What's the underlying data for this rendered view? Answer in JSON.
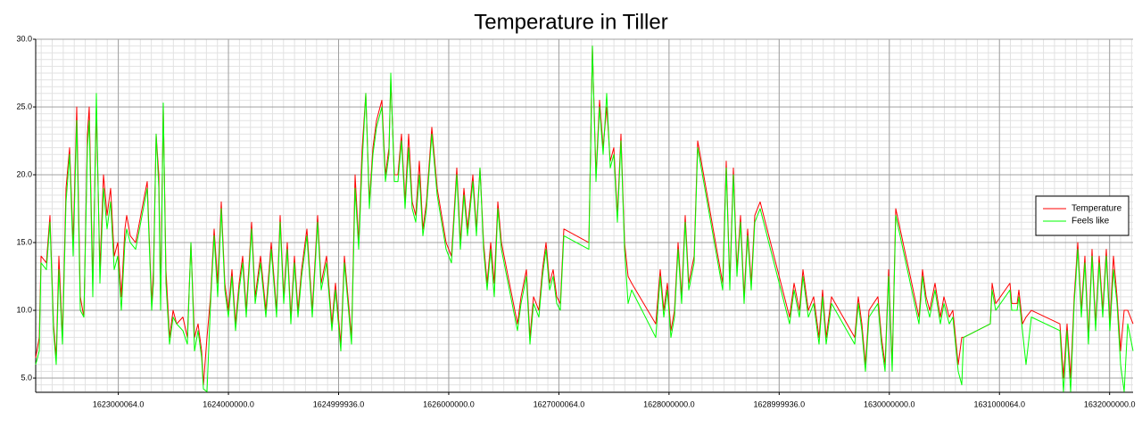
{
  "chart_data": {
    "type": "line",
    "title": "Temperature in Tiller",
    "x": [
      1622250000,
      1622282400,
      1622298600,
      1622347200,
      1622379600,
      1622412000,
      1622436300,
      1622460600,
      1622493000,
      1622525400,
      1622557800,
      1622590200,
      1622622600,
      1622655000,
      1622687400,
      1622719800,
      1622736000,
      1622768400,
      1622800800,
      1622833200,
      1622865600,
      1622898000,
      1622930400,
      1622962800,
      1622995200,
      1623027600,
      1623060000,
      1623076200,
      1623108600,
      1623157200,
      1623262500,
      1623303000,
      1623319200,
      1623343500,
      1623367800,
      1623384000,
      1623408300,
      1623432600,
      1623465000,
      1623497400,
      1623529800,
      1623586500,
      1623627000,
      1623659400,
      1623691800,
      1623724200,
      1623756600,
      1623772800,
      1623805200,
      1623837600,
      1623870000,
      1623902400,
      1623934800,
      1623967200,
      1623999600,
      1624032000,
      1624064400,
      1624096800,
      1624129200,
      1624161600,
      1624210200,
      1624242600,
      1624291200,
      1624339800,
      1624388400,
      1624437000,
      1624469400,
      1624501800,
      1624534200,
      1624566600,
      1624599000,
      1624631400,
      1624663800,
      1624712400,
      1624761000,
      1624809600,
      1624842000,
      1624890600,
      1624939200,
      1624971600,
      1625020200,
      1625052600,
      1625085000,
      1625117400,
      1625149800,
      1625182200,
      1625214600,
      1625247000,
      1625279400,
      1625311800,
      1625344200,
      1625392800,
      1625425200,
      1625457600,
      1625473800,
      1625506200,
      1625538600,
      1625571000,
      1625603400,
      1625635800,
      1625668200,
      1625700600,
      1625733000,
      1625765400,
      1625797800,
      1625846400,
      1625895000,
      1625976000,
      1626024600,
      1626073200,
      1626105600,
      1626138000,
      1626170400,
      1626219000,
      1626251400,
      1626283800,
      1626316200,
      1626348600,
      1626381000,
      1626413400,
      1626445800,
      1626478200,
      1626526800,
      1626575400,
      1626624000,
      1626656400,
      1626705000,
      1626737400,
      1626769800,
      1626818400,
      1626850800,
      1626883200,
      1626915600,
      1626948000,
      1626980400,
      1627012800,
      1627045200,
      1627272000,
      1627304400,
      1627336800,
      1627369200,
      1627401600,
      1627434000,
      1627466400,
      1627498800,
      1627531200,
      1627563600,
      1627596000,
      1627628400,
      1627660800,
      1627879500,
      1627920000,
      1627952400,
      1627984800,
      1628017200,
      1628049600,
      1628082000,
      1628114400,
      1628146800,
      1628179200,
      1628227800,
      1628260200,
      1628487000,
      1628519400,
      1628551800,
      1628584200,
      1628616600,
      1628649000,
      1628681400,
      1628713800,
      1628746200,
      1628778600,
      1628827200,
      1629094500,
      1629135000,
      1629183600,
      1629216000,
      1629264600,
      1629313200,
      1629361800,
      1629394200,
      1629426600,
      1629475200,
      1629685800,
      1629718200,
      1629750600,
      1629783000,
      1629815400,
      1629896400,
      1629928800,
      1629961200,
      1629993600,
      1630026000,
      1630058400,
      1630269000,
      1630301400,
      1630333800,
      1630366200,
      1630414800,
      1630463400,
      1630495800,
      1630544400,
      1630576800,
      1630625400,
      1630657800,
      1630674000,
      1630917000,
      1630933200,
      1630965600,
      1631095200,
      1631111400,
      1631160000,
      1631176200,
      1631208600,
      1631241000,
      1631289600,
      1631548800,
      1631581200,
      1631613600,
      1631646000,
      1631678400,
      1631710800,
      1631743200,
      1631775600,
      1631808000,
      1631840400,
      1631872800,
      1631905200,
      1631937600,
      1631970000,
      1632002400,
      1632034800,
      1632067200,
      1632099600,
      1632132000,
      1632164400,
      1632213000
    ],
    "series": [
      {
        "name": "Temperature",
        "color": "#ff0000",
        "values": [
          6.5,
          8,
          14,
          13.5,
          17,
          9,
          6.5,
          14,
          8,
          19,
          22,
          15,
          25,
          11,
          9.5,
          23,
          25,
          12,
          25,
          13,
          20,
          17,
          19,
          14,
          15,
          11,
          16,
          17,
          15.5,
          15,
          19.5,
          10.5,
          13,
          23,
          20,
          11,
          25,
          13,
          8,
          10,
          9,
          9.5,
          8,
          15,
          8,
          9,
          7,
          4.5,
          8,
          11,
          16,
          12,
          18,
          12,
          10,
          13,
          9,
          12,
          14,
          10,
          16.5,
          11,
          14,
          10,
          15,
          10,
          17,
          11,
          15,
          9.5,
          14,
          10,
          13,
          16,
          10,
          17,
          12,
          14,
          9,
          12,
          7.5,
          14,
          11,
          8,
          20,
          15,
          22,
          26,
          18,
          22,
          24,
          25.5,
          20,
          22,
          27,
          20,
          20,
          23,
          18,
          23,
          18,
          17,
          21,
          16,
          18,
          23.5,
          19,
          15,
          14,
          20.5,
          15,
          19,
          16,
          20,
          16,
          20.5,
          15,
          12,
          15,
          12,
          18,
          15,
          13,
          11,
          9,
          11,
          13,
          8,
          11,
          10,
          13,
          15,
          12,
          13,
          11,
          10.5,
          16,
          15,
          29.5,
          20,
          25.5,
          22,
          25,
          21,
          22,
          17,
          23,
          15,
          12.5,
          12,
          9,
          13,
          10,
          12,
          8.5,
          10,
          15,
          11,
          17,
          12,
          14,
          22.5,
          12,
          21,
          12,
          20.5,
          13,
          17,
          11,
          16,
          12,
          17,
          18,
          9.5,
          12,
          10,
          13,
          10,
          11,
          8,
          11.5,
          8,
          11,
          8,
          11,
          9,
          6,
          10,
          11,
          8,
          6,
          13,
          6,
          17.5,
          9.5,
          13,
          11,
          10,
          12,
          9.5,
          11,
          9.5,
          10,
          6,
          8,
          8,
          9,
          12,
          10.5,
          12,
          10.5,
          10.5,
          11.5,
          9,
          9.5,
          10,
          9,
          5,
          9,
          5,
          11,
          15,
          10,
          14,
          8,
          14.5,
          9,
          14,
          10,
          14.5,
          9,
          14,
          11,
          7,
          10,
          10,
          9
        ]
      },
      {
        "name": "Feels like",
        "color": "#00ff00",
        "values": [
          6,
          7,
          13.5,
          13,
          16.5,
          8.5,
          6,
          13,
          7.5,
          18,
          21.5,
          14,
          24,
          10,
          9.5,
          22,
          24,
          11,
          26,
          12,
          19,
          16,
          18,
          13,
          14,
          10,
          15,
          16,
          15,
          14.5,
          19,
          10,
          12,
          23,
          19,
          10,
          25.3,
          12,
          7.5,
          9.5,
          9,
          8.5,
          7.5,
          15,
          7,
          8.5,
          6.5,
          4.2,
          4,
          10.5,
          15.5,
          11,
          17.5,
          11.5,
          9.5,
          12.5,
          8.5,
          11.5,
          13.5,
          9.5,
          16,
          10.5,
          13.5,
          9.5,
          14.5,
          9.5,
          16.5,
          10.5,
          14.5,
          9,
          13.5,
          9.5,
          12.5,
          15.5,
          9.5,
          16.5,
          11.5,
          13.5,
          8.5,
          11.5,
          7,
          13.5,
          10.5,
          7.5,
          19,
          14.5,
          21,
          26,
          17.5,
          21.5,
          23.5,
          25,
          19.5,
          21.5,
          27.5,
          19.5,
          19.5,
          22.5,
          17.5,
          22,
          17.5,
          16.5,
          20,
          15.5,
          17.5,
          23,
          18.5,
          14.5,
          13.5,
          20,
          14.5,
          18.5,
          15.5,
          19.5,
          15.5,
          20.5,
          14.5,
          11.5,
          14.5,
          11,
          17.5,
          14.5,
          12.5,
          10.5,
          8.5,
          10.5,
          12.5,
          7.5,
          10.5,
          9.5,
          12.5,
          14.5,
          11.5,
          12.5,
          10.5,
          10,
          15.5,
          14.5,
          29.5,
          19.5,
          25,
          21.5,
          26,
          20.5,
          21.5,
          16.5,
          22.5,
          14.5,
          10.5,
          11.5,
          8,
          12.5,
          9.5,
          11.5,
          8,
          9.5,
          14.5,
          10.5,
          16.5,
          11.5,
          13.5,
          22,
          11.5,
          20.5,
          11.5,
          20,
          12.5,
          16.5,
          10.5,
          15.5,
          11.5,
          16.5,
          17.5,
          9,
          11.5,
          9.5,
          12.5,
          9.5,
          10.5,
          7.5,
          11,
          7.5,
          10.5,
          7.5,
          10.5,
          8.5,
          5.5,
          9.5,
          10.5,
          7.5,
          5.5,
          12.5,
          5.5,
          17,
          9,
          12.5,
          10.5,
          9.5,
          11.5,
          9,
          10.5,
          9,
          9.5,
          5.5,
          4.5,
          8,
          9,
          11.5,
          10,
          11.5,
          10,
          10,
          11,
          8.5,
          6,
          9.5,
          8.5,
          4,
          8.5,
          4,
          10.5,
          14.5,
          9.5,
          13.5,
          7.5,
          14,
          8.5,
          13.5,
          9.5,
          14,
          8.5,
          13,
          10.5,
          6,
          4,
          9,
          7
        ]
      }
    ],
    "xlim": [
      1622250000,
      1632213000
    ],
    "xticks": [
      {
        "value": 1623000064,
        "label": "1623000064.0"
      },
      {
        "value": 1624000000,
        "label": "1624000000.0"
      },
      {
        "value": 1624999936,
        "label": "1624999936.0"
      },
      {
        "value": 1626000000,
        "label": "1626000000.0"
      },
      {
        "value": 1627000064,
        "label": "1627000064.0"
      },
      {
        "value": 1628000000,
        "label": "1628000000.0"
      },
      {
        "value": 1628999936,
        "label": "1628999936.0"
      },
      {
        "value": 1630000000,
        "label": "1630000000.0"
      },
      {
        "value": 1631000064,
        "label": "1631000064.0"
      },
      {
        "value": 1632000000,
        "label": "1632000000.0"
      }
    ],
    "ylim": [
      3.95,
      30
    ],
    "yticks": [
      {
        "value": 5,
        "label": "5.0"
      },
      {
        "value": 10,
        "label": "10.0"
      },
      {
        "value": 15,
        "label": "15.0"
      },
      {
        "value": 20,
        "label": "20.0"
      },
      {
        "value": 25,
        "label": "25.0"
      },
      {
        "value": 30,
        "label": "30.0"
      }
    ],
    "grid": true,
    "minor_grid": true,
    "legend": "center right"
  }
}
